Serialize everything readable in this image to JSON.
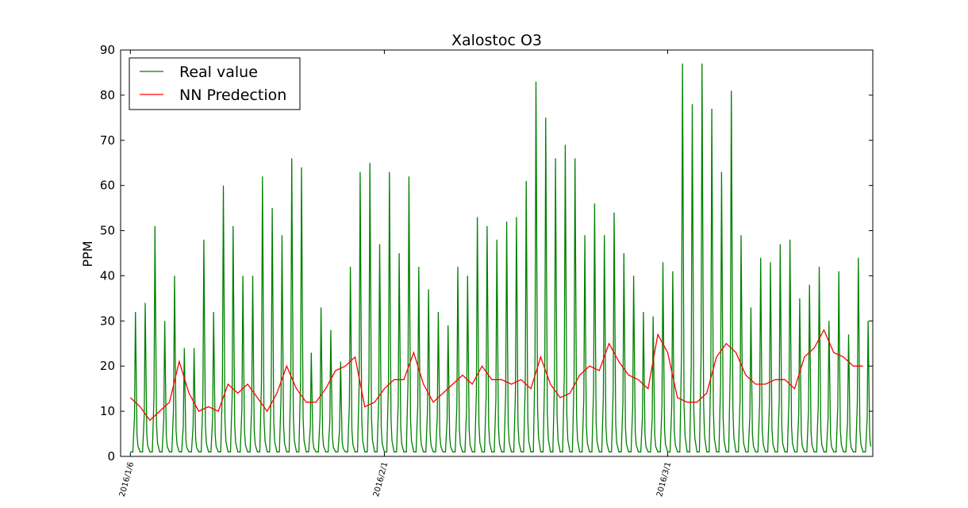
{
  "chart_data": {
    "type": "line",
    "title": "Xalostoc O3",
    "xlabel": "",
    "ylabel": "PPM",
    "ylim": [
      0,
      90
    ],
    "xlim": [
      "2016-01-05",
      "2016-03-22"
    ],
    "yticks": [
      0,
      10,
      20,
      30,
      40,
      50,
      60,
      70,
      80,
      90
    ],
    "xticks": [
      {
        "label": "2016/1/6",
        "date": "2016-01-06"
      },
      {
        "label": "2016/2/1",
        "date": "2016-02-01"
      },
      {
        "label": "2016/3/1",
        "date": "2016-03-01"
      }
    ],
    "legend_position": "top-left",
    "grid": false,
    "series": [
      {
        "name": "Real value",
        "color": "#008000",
        "peak_dates": [
          "2016-01-06",
          "2016-01-07",
          "2016-01-08",
          "2016-01-09",
          "2016-01-10",
          "2016-01-11",
          "2016-01-12",
          "2016-01-13",
          "2016-01-14",
          "2016-01-15",
          "2016-01-16",
          "2016-01-17",
          "2016-01-18",
          "2016-01-19",
          "2016-01-20",
          "2016-01-21",
          "2016-01-22",
          "2016-01-23",
          "2016-01-24",
          "2016-01-25",
          "2016-01-26",
          "2016-01-27",
          "2016-01-28",
          "2016-01-29",
          "2016-01-30",
          "2016-01-31",
          "2016-02-01",
          "2016-02-02",
          "2016-02-03",
          "2016-02-04",
          "2016-02-05",
          "2016-02-06",
          "2016-02-07",
          "2016-02-08",
          "2016-02-09",
          "2016-02-10",
          "2016-02-11",
          "2016-02-12",
          "2016-02-13",
          "2016-02-14",
          "2016-02-15",
          "2016-02-16",
          "2016-02-17",
          "2016-02-18",
          "2016-02-19",
          "2016-02-20",
          "2016-02-21",
          "2016-02-22",
          "2016-02-23",
          "2016-02-24",
          "2016-02-25",
          "2016-02-26",
          "2016-02-27",
          "2016-02-28",
          "2016-02-29",
          "2016-03-01",
          "2016-03-02",
          "2016-03-03",
          "2016-03-04",
          "2016-03-05",
          "2016-03-06",
          "2016-03-07",
          "2016-03-08",
          "2016-03-09",
          "2016-03-10",
          "2016-03-11",
          "2016-03-12",
          "2016-03-13",
          "2016-03-14",
          "2016-03-15",
          "2016-03-16",
          "2016-03-17",
          "2016-03-18",
          "2016-03-19",
          "2016-03-20",
          "2016-03-21"
        ],
        "daily_peak": [
          32,
          34,
          51,
          30,
          40,
          24,
          24,
          48,
          32,
          60,
          51,
          40,
          40,
          62,
          55,
          49,
          66,
          64,
          23,
          33,
          28,
          21,
          42,
          63,
          65,
          47,
          63,
          45,
          62,
          42,
          37,
          32,
          29,
          42,
          40,
          53,
          51,
          48,
          52,
          53,
          61,
          83,
          75,
          66,
          69,
          66,
          49,
          56,
          49,
          54,
          45,
          40,
          32,
          31,
          43,
          41,
          87,
          78,
          87,
          77,
          63,
          81,
          49,
          33,
          44,
          43,
          47,
          48,
          35,
          38,
          42,
          30,
          41,
          27,
          44,
          30
        ],
        "daily_min": 1
      },
      {
        "name": "NN Predection",
        "color": "#ff0000",
        "dates": [
          "2016-01-06",
          "2016-01-07",
          "2016-01-08",
          "2016-01-09",
          "2016-01-10",
          "2016-01-11",
          "2016-01-12",
          "2016-01-13",
          "2016-01-14",
          "2016-01-15",
          "2016-01-16",
          "2016-01-17",
          "2016-01-18",
          "2016-01-19",
          "2016-01-20",
          "2016-01-21",
          "2016-01-22",
          "2016-01-23",
          "2016-01-24",
          "2016-01-25",
          "2016-01-26",
          "2016-01-27",
          "2016-01-28",
          "2016-01-29",
          "2016-01-30",
          "2016-01-31",
          "2016-02-01",
          "2016-02-02",
          "2016-02-03",
          "2016-02-04",
          "2016-02-05",
          "2016-02-06",
          "2016-02-07",
          "2016-02-08",
          "2016-02-09",
          "2016-02-10",
          "2016-02-11",
          "2016-02-12",
          "2016-02-13",
          "2016-02-14",
          "2016-02-15",
          "2016-02-16",
          "2016-02-17",
          "2016-02-18",
          "2016-02-19",
          "2016-02-20",
          "2016-02-21",
          "2016-02-22",
          "2016-02-23",
          "2016-02-24",
          "2016-02-25",
          "2016-02-26",
          "2016-02-27",
          "2016-02-28",
          "2016-02-29",
          "2016-03-01",
          "2016-03-02",
          "2016-03-03",
          "2016-03-04",
          "2016-03-05",
          "2016-03-06",
          "2016-03-07",
          "2016-03-08",
          "2016-03-09",
          "2016-03-10",
          "2016-03-11",
          "2016-03-12",
          "2016-03-13",
          "2016-03-14",
          "2016-03-15",
          "2016-03-16",
          "2016-03-17",
          "2016-03-18",
          "2016-03-19",
          "2016-03-20",
          "2016-03-21"
        ],
        "values": [
          13,
          11,
          8,
          10,
          12,
          21,
          14,
          10,
          11,
          10,
          16,
          14,
          16,
          13,
          10,
          14,
          20,
          15,
          12,
          12,
          15,
          19,
          20,
          22,
          11,
          12,
          15,
          17,
          17,
          23,
          16,
          12,
          14,
          16,
          18,
          16,
          20,
          17,
          17,
          16,
          17,
          15,
          22,
          16,
          13,
          14,
          18,
          20,
          19,
          25,
          21,
          18,
          17,
          15,
          27,
          23,
          13,
          12,
          12,
          14,
          22,
          25,
          23,
          18,
          16,
          16,
          17,
          17,
          15,
          22,
          24,
          28,
          23,
          22,
          20,
          20
        ]
      }
    ]
  }
}
